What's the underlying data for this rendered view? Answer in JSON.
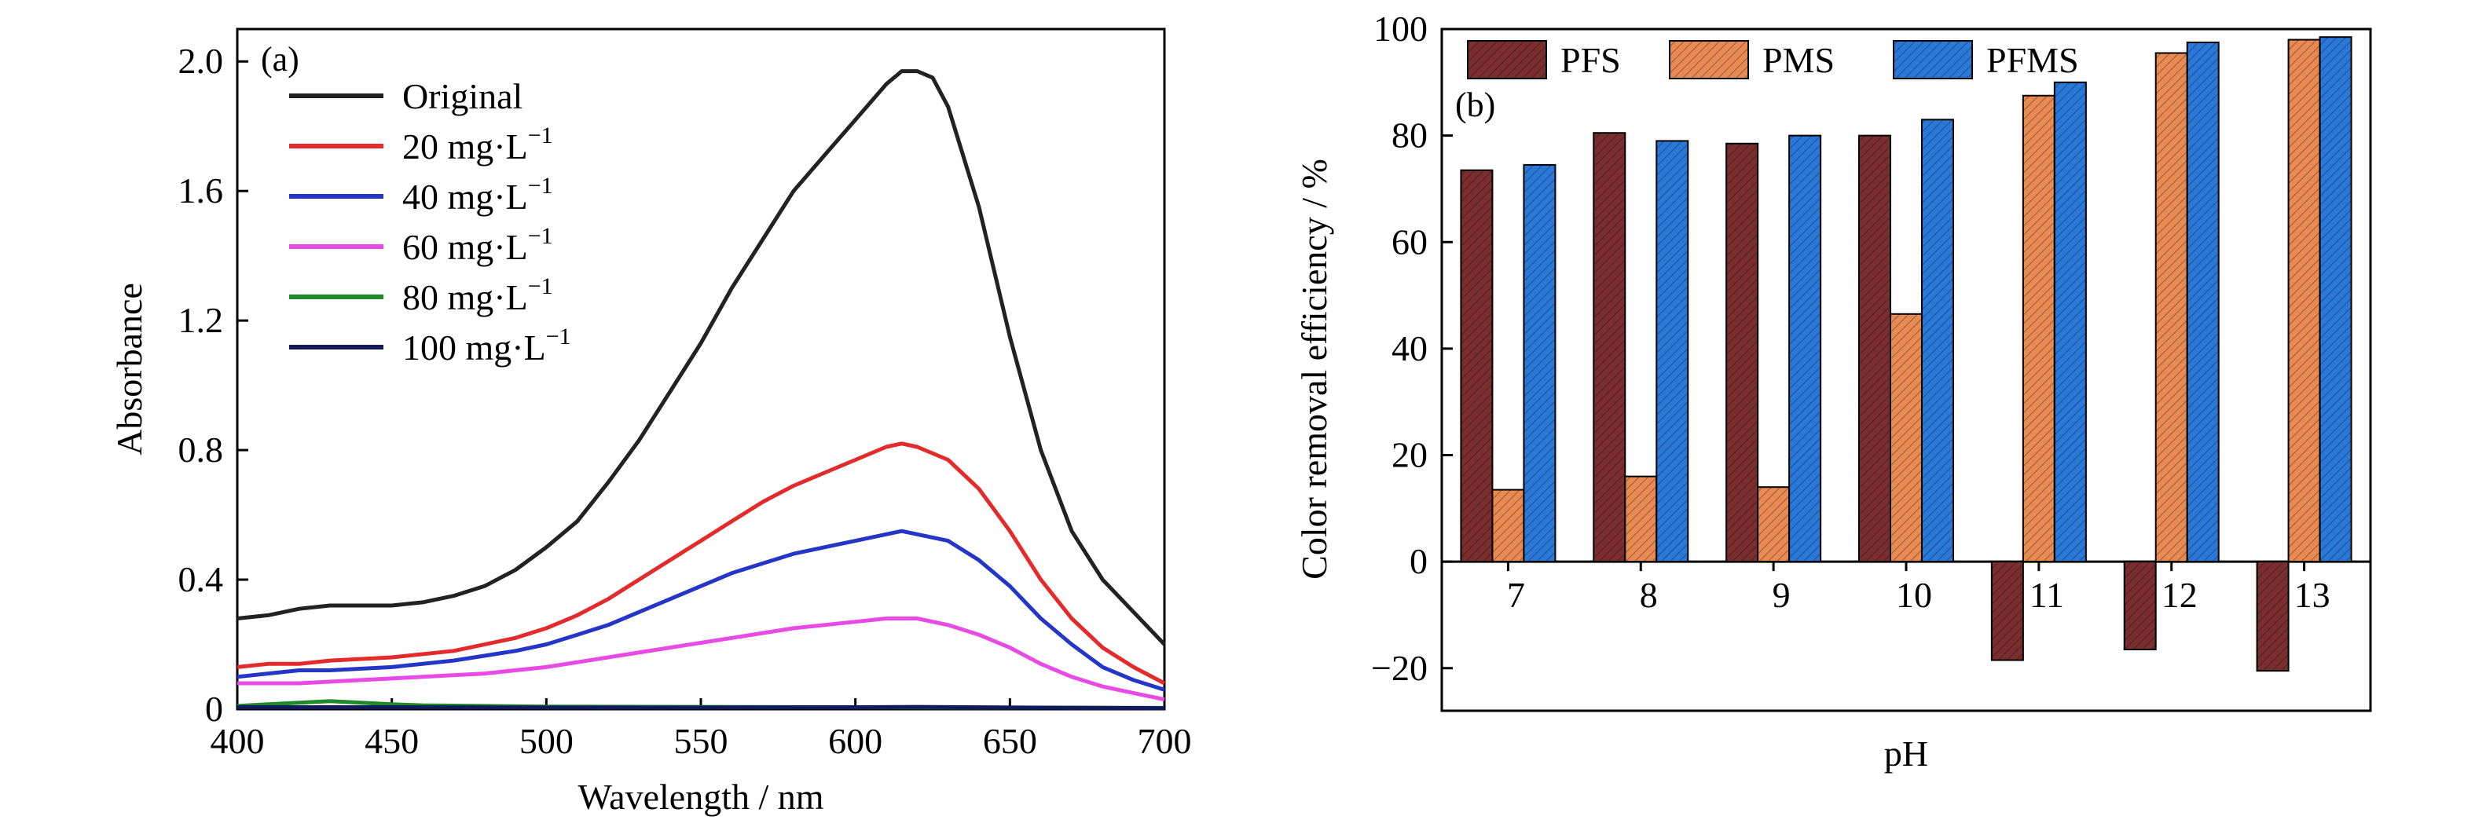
{
  "chart_data": [
    {
      "type": "line",
      "panel_label": "(a)",
      "xlabel": "Wavelength / nm",
      "ylabel": "Absorbance",
      "xlim": [
        400,
        700
      ],
      "ylim": [
        0,
        2.1
      ],
      "xticks": [
        400,
        450,
        500,
        550,
        600,
        650,
        700
      ],
      "yticks": [
        0,
        0.4,
        0.8,
        1.2,
        1.6,
        2.0
      ],
      "ytick_labels": [
        "0",
        "0.4",
        "0.8",
        "1.2",
        "1.6",
        "2.0"
      ],
      "legend_position": "top-left",
      "series": [
        {
          "name": "Original",
          "color": "#222222",
          "points": [
            [
              400,
              0.28
            ],
            [
              410,
              0.29
            ],
            [
              420,
              0.31
            ],
            [
              430,
              0.32
            ],
            [
              440,
              0.32
            ],
            [
              450,
              0.32
            ],
            [
              460,
              0.33
            ],
            [
              470,
              0.35
            ],
            [
              480,
              0.38
            ],
            [
              490,
              0.43
            ],
            [
              500,
              0.5
            ],
            [
              510,
              0.58
            ],
            [
              520,
              0.7
            ],
            [
              530,
              0.83
            ],
            [
              540,
              0.98
            ],
            [
              550,
              1.13
            ],
            [
              560,
              1.3
            ],
            [
              570,
              1.45
            ],
            [
              580,
              1.6
            ],
            [
              590,
              1.71
            ],
            [
              600,
              1.82
            ],
            [
              610,
              1.93
            ],
            [
              615,
              1.97
            ],
            [
              620,
              1.97
            ],
            [
              625,
              1.95
            ],
            [
              630,
              1.86
            ],
            [
              640,
              1.55
            ],
            [
              650,
              1.15
            ],
            [
              660,
              0.8
            ],
            [
              670,
              0.55
            ],
            [
              680,
              0.4
            ],
            [
              690,
              0.3
            ],
            [
              700,
              0.2
            ]
          ]
        },
        {
          "name": "20 mg·L",
          "name_sup": "−1",
          "color": "#e32b2b",
          "points": [
            [
              400,
              0.13
            ],
            [
              410,
              0.14
            ],
            [
              420,
              0.14
            ],
            [
              430,
              0.15
            ],
            [
              450,
              0.16
            ],
            [
              470,
              0.18
            ],
            [
              490,
              0.22
            ],
            [
              500,
              0.25
            ],
            [
              510,
              0.29
            ],
            [
              520,
              0.34
            ],
            [
              530,
              0.4
            ],
            [
              540,
              0.46
            ],
            [
              550,
              0.52
            ],
            [
              560,
              0.58
            ],
            [
              570,
              0.64
            ],
            [
              580,
              0.69
            ],
            [
              590,
              0.73
            ],
            [
              600,
              0.77
            ],
            [
              610,
              0.81
            ],
            [
              615,
              0.82
            ],
            [
              620,
              0.81
            ],
            [
              630,
              0.77
            ],
            [
              640,
              0.68
            ],
            [
              650,
              0.55
            ],
            [
              660,
              0.4
            ],
            [
              670,
              0.28
            ],
            [
              680,
              0.19
            ],
            [
              690,
              0.13
            ],
            [
              700,
              0.08
            ]
          ]
        },
        {
          "name": "40 mg·L",
          "name_sup": "−1",
          "color": "#2436c8",
          "points": [
            [
              400,
              0.1
            ],
            [
              410,
              0.11
            ],
            [
              420,
              0.12
            ],
            [
              430,
              0.12
            ],
            [
              450,
              0.13
            ],
            [
              470,
              0.15
            ],
            [
              490,
              0.18
            ],
            [
              500,
              0.2
            ],
            [
              510,
              0.23
            ],
            [
              520,
              0.26
            ],
            [
              530,
              0.3
            ],
            [
              540,
              0.34
            ],
            [
              550,
              0.38
            ],
            [
              560,
              0.42
            ],
            [
              570,
              0.45
            ],
            [
              580,
              0.48
            ],
            [
              590,
              0.5
            ],
            [
              600,
              0.52
            ],
            [
              610,
              0.54
            ],
            [
              615,
              0.55
            ],
            [
              620,
              0.54
            ],
            [
              630,
              0.52
            ],
            [
              640,
              0.46
            ],
            [
              650,
              0.38
            ],
            [
              660,
              0.28
            ],
            [
              670,
              0.2
            ],
            [
              680,
              0.13
            ],
            [
              690,
              0.09
            ],
            [
              700,
              0.06
            ]
          ]
        },
        {
          "name": "60 mg·L",
          "name_sup": "−1",
          "color": "#e84ae6",
          "points": [
            [
              400,
              0.08
            ],
            [
              420,
              0.08
            ],
            [
              440,
              0.09
            ],
            [
              460,
              0.1
            ],
            [
              480,
              0.11
            ],
            [
              500,
              0.13
            ],
            [
              520,
              0.16
            ],
            [
              540,
              0.19
            ],
            [
              560,
              0.22
            ],
            [
              580,
              0.25
            ],
            [
              600,
              0.27
            ],
            [
              610,
              0.28
            ],
            [
              620,
              0.28
            ],
            [
              630,
              0.26
            ],
            [
              640,
              0.23
            ],
            [
              650,
              0.19
            ],
            [
              660,
              0.14
            ],
            [
              670,
              0.1
            ],
            [
              680,
              0.07
            ],
            [
              690,
              0.05
            ],
            [
              700,
              0.03
            ]
          ]
        },
        {
          "name": "80 mg·L",
          "name_sup": "−1",
          "color": "#1f8a2a",
          "points": [
            [
              400,
              0.01
            ],
            [
              410,
              0.015
            ],
            [
              420,
              0.02
            ],
            [
              430,
              0.025
            ],
            [
              440,
              0.02
            ],
            [
              450,
              0.015
            ],
            [
              460,
              0.012
            ],
            [
              480,
              0.01
            ],
            [
              500,
              0.008
            ],
            [
              550,
              0.007
            ],
            [
              600,
              0.006
            ],
            [
              650,
              0.005
            ],
            [
              700,
              0.004
            ]
          ]
        },
        {
          "name": "100 mg·L",
          "name_sup": "−1",
          "color": "#101a5c",
          "points": [
            [
              400,
              0.006
            ],
            [
              450,
              0.006
            ],
            [
              500,
              0.005
            ],
            [
              550,
              0.005
            ],
            [
              600,
              0.006
            ],
            [
              620,
              0.007
            ],
            [
              650,
              0.005
            ],
            [
              700,
              0.003
            ]
          ]
        }
      ]
    },
    {
      "type": "bar",
      "panel_label": "(b)",
      "xlabel": "pH",
      "ylabel": "Color removal efficiency / %",
      "categories": [
        "7",
        "8",
        "9",
        "10",
        "11",
        "12",
        "13"
      ],
      "ylim": [
        -28,
        100
      ],
      "yticks": [
        -20,
        0,
        20,
        40,
        60,
        80,
        100
      ],
      "ytick_labels": [
        "−20",
        "0",
        "20",
        "40",
        "60",
        "80",
        "100"
      ],
      "legend_position": "top",
      "series": [
        {
          "name": "PFS",
          "color": "#7a2e2e",
          "values": [
            73.5,
            80.5,
            78.5,
            80,
            -18.5,
            -16.5,
            -20.5
          ]
        },
        {
          "name": "PMS",
          "color": "#e88a52",
          "values": [
            13.5,
            16,
            14,
            46.5,
            87.5,
            95.5,
            98
          ]
        },
        {
          "name": "PFMS",
          "color": "#2a78d8",
          "values": [
            74.5,
            79,
            80,
            83,
            90,
            97.5,
            98.5
          ]
        }
      ]
    }
  ]
}
